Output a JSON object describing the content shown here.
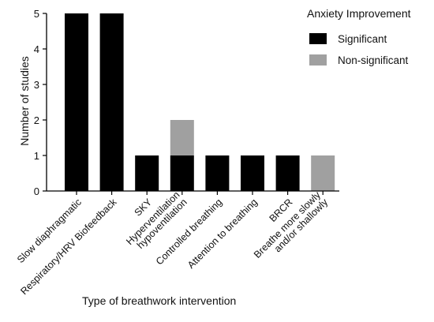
{
  "chart_data": {
    "type": "bar",
    "stacked": true,
    "categories": [
      "Slow diaphragmatic",
      "Respiratory/HRV Biofeedback",
      "SKY",
      "Hyperventilation\nhypoventilation",
      "Controlled breathing",
      "Attention to breathing",
      "BRCR",
      "Breathe more slowly\nand/or shallowly"
    ],
    "series": [
      {
        "name": "Significant",
        "color": "#000000",
        "values": [
          5,
          5,
          1,
          1,
          1,
          1,
          1,
          0
        ]
      },
      {
        "name": "Non-significant",
        "color": "#a0a0a0",
        "values": [
          0,
          0,
          0,
          1,
          0,
          0,
          0,
          1
        ]
      }
    ],
    "xlabel": "Type of breathwork intervention",
    "ylabel": "Number of studies",
    "ylim": [
      0,
      5
    ],
    "yticks": [
      0,
      1,
      2,
      3,
      4,
      5
    ],
    "grid": false,
    "legend": {
      "title": "Anxiety Improvement",
      "position": "top-right"
    }
  }
}
